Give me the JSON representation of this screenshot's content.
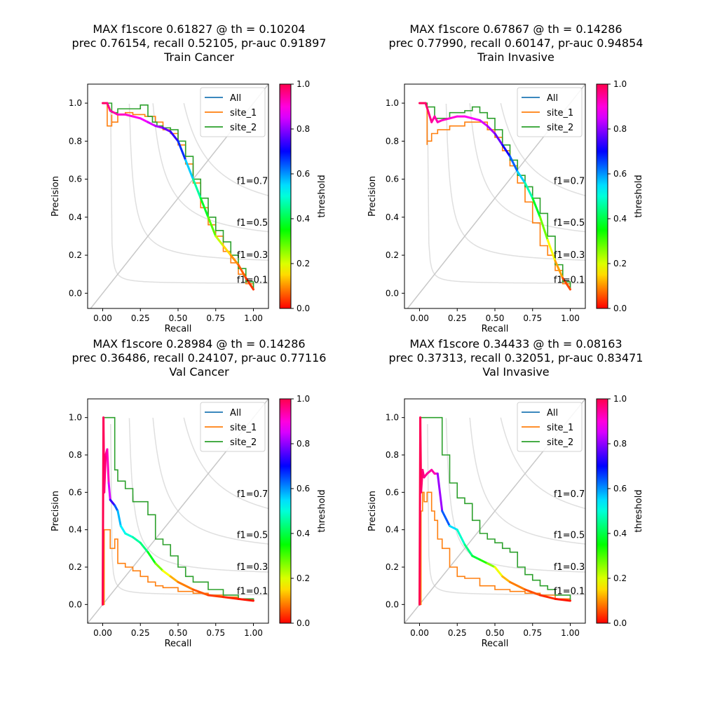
{
  "chart_data": [
    {
      "type": "line",
      "title_lines": [
        "MAX f1score  0.61827 @ th =  0.10204",
        "prec  0.76154, recall  0.52105, pr-auc  0.91897",
        "Train Cancer"
      ],
      "xlabel": "Recall",
      "ylabel": "Precision",
      "xlim": [
        -0.1,
        1.1
      ],
      "ylim": [
        -0.08,
        1.1
      ],
      "xticks": [
        "0.00",
        "0.25",
        "0.50",
        "0.75",
        "1.00"
      ],
      "yticks": [
        "0.0",
        "0.2",
        "0.4",
        "0.6",
        "0.8",
        "1.0"
      ],
      "legend": [
        "All",
        "site_1",
        "site_2"
      ],
      "legend_position": "top-right",
      "f1_labels": [
        {
          "text": "f1=0.7",
          "x": 0.89,
          "y": 0.59
        },
        {
          "text": "f1=0.5",
          "x": 0.89,
          "y": 0.37
        },
        {
          "text": "f1=0.3",
          "x": 0.89,
          "y": 0.2
        },
        {
          "text": "f1=0.1",
          "x": 0.89,
          "y": 0.07
        }
      ],
      "series": [
        {
          "name": "site_1",
          "color": "#ff7f0e",
          "x": [
            0,
            0.02,
            0.03,
            0.03,
            0.06,
            0.06,
            0.1,
            0.15,
            0.2,
            0.28,
            0.35,
            0.4,
            0.45,
            0.5,
            0.55,
            0.6,
            0.65,
            0.7,
            0.75,
            0.8,
            0.85,
            0.9,
            0.95,
            1.0
          ],
          "y": [
            1.0,
            1.0,
            0.92,
            0.88,
            0.94,
            0.9,
            0.94,
            0.95,
            0.94,
            0.93,
            0.9,
            0.86,
            0.84,
            0.78,
            0.68,
            0.58,
            0.45,
            0.36,
            0.3,
            0.22,
            0.16,
            0.1,
            0.05,
            0.02
          ]
        },
        {
          "name": "site_2",
          "color": "#2ca02c",
          "x": [
            0,
            0.05,
            0.06,
            0.08,
            0.1,
            0.1,
            0.25,
            0.3,
            0.33,
            0.36,
            0.4,
            0.45,
            0.5,
            0.55,
            0.6,
            0.65,
            0.7,
            0.75,
            0.8,
            0.85,
            0.9,
            0.95,
            1.0
          ],
          "y": [
            1.0,
            1.0,
            0.95,
            0.95,
            0.96,
            0.97,
            0.99,
            0.93,
            0.9,
            0.88,
            0.87,
            0.86,
            0.8,
            0.72,
            0.6,
            0.5,
            0.4,
            0.33,
            0.27,
            0.2,
            0.13,
            0.06,
            0.02
          ]
        },
        {
          "name": "All",
          "gradient": true,
          "color": "#1f77b4",
          "x": [
            0,
            0.03,
            0.05,
            0.1,
            0.15,
            0.2,
            0.25,
            0.3,
            0.35,
            0.4,
            0.45,
            0.5,
            0.55,
            0.6,
            0.65,
            0.7,
            0.75,
            0.8,
            0.85,
            0.9,
            0.95,
            1.0
          ],
          "y": [
            1.0,
            1.0,
            0.96,
            0.94,
            0.94,
            0.93,
            0.92,
            0.9,
            0.88,
            0.87,
            0.85,
            0.8,
            0.7,
            0.6,
            0.5,
            0.4,
            0.3,
            0.25,
            0.2,
            0.15,
            0.08,
            0.02
          ],
          "t": [
            1.0,
            0.97,
            0.95,
            0.93,
            0.91,
            0.9,
            0.88,
            0.86,
            0.84,
            0.8,
            0.75,
            0.72,
            0.62,
            0.5,
            0.42,
            0.33,
            0.25,
            0.18,
            0.12,
            0.08,
            0.05,
            0.02
          ]
        }
      ]
    },
    {
      "type": "line",
      "title_lines": [
        "MAX f1score  0.67867 @ th =  0.14286",
        "prec  0.77990, recall  0.60147, pr-auc  0.94854",
        "Train Invasive"
      ],
      "xlabel": "Recall",
      "ylabel": "Precision",
      "xlim": [
        -0.1,
        1.1
      ],
      "ylim": [
        -0.08,
        1.1
      ],
      "xticks": [
        "0.00",
        "0.25",
        "0.50",
        "0.75",
        "1.00"
      ],
      "yticks": [
        "0.0",
        "0.2",
        "0.4",
        "0.6",
        "0.8",
        "1.0"
      ],
      "legend": [
        "All",
        "site_1",
        "site_2"
      ],
      "legend_position": "top-right",
      "f1_labels": [
        {
          "text": "f1=0.7",
          "x": 0.89,
          "y": 0.59
        },
        {
          "text": "f1=0.5",
          "x": 0.89,
          "y": 0.37
        },
        {
          "text": "f1=0.3",
          "x": 0.89,
          "y": 0.2
        },
        {
          "text": "f1=0.1",
          "x": 0.89,
          "y": 0.07
        }
      ],
      "series": [
        {
          "name": "site_1",
          "color": "#ff7f0e",
          "x": [
            0,
            0.04,
            0.05,
            0.05,
            0.08,
            0.08,
            0.12,
            0.2,
            0.3,
            0.4,
            0.45,
            0.5,
            0.55,
            0.6,
            0.65,
            0.7,
            0.75,
            0.8,
            0.85,
            0.9,
            0.95,
            1.0
          ],
          "y": [
            1.0,
            1.0,
            0.78,
            0.8,
            0.8,
            0.84,
            0.86,
            0.88,
            0.9,
            0.9,
            0.86,
            0.82,
            0.75,
            0.67,
            0.58,
            0.48,
            0.37,
            0.25,
            0.2,
            0.12,
            0.05,
            0.02
          ]
        },
        {
          "name": "site_2",
          "color": "#2ca02c",
          "x": [
            0,
            0.03,
            0.05,
            0.1,
            0.1,
            0.2,
            0.3,
            0.35,
            0.38,
            0.4,
            0.45,
            0.5,
            0.55,
            0.6,
            0.65,
            0.7,
            0.75,
            0.8,
            0.85,
            0.9,
            0.95,
            1.0
          ],
          "y": [
            1.0,
            1.0,
            0.98,
            0.97,
            0.92,
            0.95,
            0.96,
            0.98,
            0.98,
            0.95,
            0.92,
            0.86,
            0.78,
            0.7,
            0.62,
            0.56,
            0.5,
            0.42,
            0.3,
            0.15,
            0.06,
            0.02
          ]
        },
        {
          "name": "All",
          "gradient": true,
          "color": "#1f77b4",
          "x": [
            0,
            0.04,
            0.06,
            0.08,
            0.1,
            0.12,
            0.15,
            0.2,
            0.25,
            0.3,
            0.35,
            0.4,
            0.45,
            0.5,
            0.55,
            0.6,
            0.65,
            0.7,
            0.75,
            0.8,
            0.85,
            0.9,
            0.95,
            1.0
          ],
          "y": [
            1.0,
            1.0,
            0.95,
            0.9,
            0.93,
            0.9,
            0.91,
            0.92,
            0.93,
            0.93,
            0.92,
            0.91,
            0.88,
            0.84,
            0.78,
            0.72,
            0.64,
            0.58,
            0.5,
            0.4,
            0.28,
            0.17,
            0.08,
            0.02
          ],
          "t": [
            1.0,
            0.98,
            0.97,
            0.95,
            0.94,
            0.93,
            0.92,
            0.91,
            0.9,
            0.89,
            0.88,
            0.86,
            0.84,
            0.8,
            0.75,
            0.67,
            0.6,
            0.52,
            0.42,
            0.33,
            0.22,
            0.14,
            0.08,
            0.02
          ]
        }
      ]
    },
    {
      "type": "line",
      "title_lines": [
        "MAX f1score  0.28984 @ th =  0.14286",
        "prec  0.36486, recall  0.24107, pr-auc  0.77116",
        "Val Cancer"
      ],
      "xlabel": "Recall",
      "ylabel": "Precision",
      "xlim": [
        -0.1,
        1.1
      ],
      "ylim": [
        -0.1,
        1.1
      ],
      "xticks": [
        "0.00",
        "0.25",
        "0.50",
        "0.75",
        "1.00"
      ],
      "yticks": [
        "0.0",
        "0.2",
        "0.4",
        "0.6",
        "0.8",
        "1.0"
      ],
      "legend": [
        "All",
        "site_1",
        "site_2"
      ],
      "legend_position": "top-right",
      "f1_labels": [
        {
          "text": "f1=0.7",
          "x": 0.89,
          "y": 0.59
        },
        {
          "text": "f1=0.5",
          "x": 0.89,
          "y": 0.37
        },
        {
          "text": "f1=0.3",
          "x": 0.89,
          "y": 0.2
        },
        {
          "text": "f1=0.1",
          "x": 0.89,
          "y": 0.07
        }
      ],
      "series": [
        {
          "name": "site_1",
          "color": "#ff7f0e",
          "x": [
            0,
            0.01,
            0.01,
            0.03,
            0.05,
            0.08,
            0.1,
            0.15,
            0.2,
            0.25,
            0.3,
            0.35,
            0.4,
            0.5,
            0.6,
            0.7,
            0.8,
            0.9,
            1.0
          ],
          "y": [
            0.0,
            0.25,
            0.4,
            0.4,
            0.3,
            0.35,
            0.22,
            0.2,
            0.18,
            0.15,
            0.12,
            0.1,
            0.09,
            0.07,
            0.06,
            0.05,
            0.04,
            0.03,
            0.02
          ]
        },
        {
          "name": "site_2",
          "color": "#2ca02c",
          "x": [
            0,
            0.02,
            0.08,
            0.08,
            0.1,
            0.15,
            0.2,
            0.25,
            0.3,
            0.35,
            0.4,
            0.45,
            0.5,
            0.55,
            0.6,
            0.7,
            0.8,
            0.9,
            1.0
          ],
          "y": [
            1.0,
            1.0,
            1.0,
            0.72,
            0.66,
            0.62,
            0.55,
            0.55,
            0.48,
            0.35,
            0.32,
            0.26,
            0.2,
            0.15,
            0.12,
            0.08,
            0.05,
            0.03,
            0.02
          ]
        },
        {
          "name": "All",
          "gradient": true,
          "color": "#1f77b4",
          "x": [
            0,
            0.005,
            0.01,
            0.02,
            0.03,
            0.04,
            0.05,
            0.08,
            0.1,
            0.12,
            0.15,
            0.2,
            0.25,
            0.3,
            0.35,
            0.4,
            0.45,
            0.5,
            0.6,
            0.7,
            0.8,
            0.9,
            1.0
          ],
          "y": [
            0.0,
            1.0,
            0.6,
            0.8,
            0.83,
            0.65,
            0.56,
            0.53,
            0.5,
            0.42,
            0.38,
            0.36,
            0.33,
            0.28,
            0.22,
            0.18,
            0.15,
            0.12,
            0.08,
            0.05,
            0.04,
            0.03,
            0.02
          ],
          "t": [
            1.0,
            1.0,
            0.98,
            0.96,
            0.95,
            0.9,
            0.8,
            0.68,
            0.6,
            0.55,
            0.52,
            0.48,
            0.45,
            0.42,
            0.32,
            0.22,
            0.14,
            0.1,
            0.07,
            0.05,
            0.03,
            0.02,
            0.01
          ]
        }
      ]
    },
    {
      "type": "line",
      "title_lines": [
        "MAX f1score  0.34433 @ th =  0.08163",
        "prec  0.37313, recall  0.32051, pr-auc  0.83471",
        "Val Invasive"
      ],
      "xlabel": "Recall",
      "ylabel": "Precision",
      "xlim": [
        -0.1,
        1.1
      ],
      "ylim": [
        -0.1,
        1.1
      ],
      "xticks": [
        "0.00",
        "0.25",
        "0.50",
        "0.75",
        "1.00"
      ],
      "yticks": [
        "0.0",
        "0.2",
        "0.4",
        "0.6",
        "0.8",
        "1.0"
      ],
      "legend": [
        "All",
        "site_1",
        "site_2"
      ],
      "legend_position": "top-right",
      "f1_labels": [
        {
          "text": "f1=0.7",
          "x": 0.89,
          "y": 0.59
        },
        {
          "text": "f1=0.5",
          "x": 0.89,
          "y": 0.37
        },
        {
          "text": "f1=0.3",
          "x": 0.89,
          "y": 0.2
        },
        {
          "text": "f1=0.1",
          "x": 0.89,
          "y": 0.07
        }
      ],
      "series": [
        {
          "name": "site_1",
          "color": "#ff7f0e",
          "x": [
            0,
            0.01,
            0.01,
            0.02,
            0.03,
            0.05,
            0.08,
            0.1,
            0.12,
            0.15,
            0.2,
            0.25,
            0.3,
            0.4,
            0.5,
            0.6,
            0.7,
            0.8,
            0.9,
            1.0
          ],
          "y": [
            0.0,
            0.3,
            0.5,
            0.6,
            0.55,
            0.6,
            0.5,
            0.45,
            0.35,
            0.3,
            0.2,
            0.15,
            0.14,
            0.1,
            0.08,
            0.07,
            0.06,
            0.05,
            0.03,
            0.02
          ]
        },
        {
          "name": "site_2",
          "color": "#2ca02c",
          "x": [
            0,
            0.02,
            0.15,
            0.15,
            0.2,
            0.25,
            0.3,
            0.35,
            0.4,
            0.45,
            0.5,
            0.55,
            0.6,
            0.65,
            0.7,
            0.75,
            0.8,
            0.85,
            0.9,
            1.0
          ],
          "y": [
            1.0,
            1.0,
            1.0,
            0.8,
            0.65,
            0.57,
            0.54,
            0.45,
            0.38,
            0.35,
            0.33,
            0.3,
            0.28,
            0.2,
            0.16,
            0.13,
            0.1,
            0.08,
            0.05,
            0.02
          ]
        },
        {
          "name": "All",
          "gradient": true,
          "color": "#1f77b4",
          "x": [
            0,
            0.005,
            0.01,
            0.02,
            0.03,
            0.05,
            0.08,
            0.1,
            0.12,
            0.15,
            0.2,
            0.25,
            0.3,
            0.35,
            0.4,
            0.45,
            0.5,
            0.55,
            0.6,
            0.7,
            0.8,
            0.9,
            1.0
          ],
          "y": [
            0.0,
            1.0,
            0.6,
            0.72,
            0.68,
            0.7,
            0.72,
            0.7,
            0.7,
            0.5,
            0.42,
            0.4,
            0.32,
            0.26,
            0.24,
            0.22,
            0.2,
            0.15,
            0.12,
            0.08,
            0.05,
            0.03,
            0.02
          ],
          "t": [
            1.0,
            1.0,
            0.99,
            0.97,
            0.96,
            0.95,
            0.94,
            0.93,
            0.92,
            0.7,
            0.58,
            0.52,
            0.46,
            0.42,
            0.36,
            0.3,
            0.22,
            0.15,
            0.1,
            0.07,
            0.04,
            0.02,
            0.01
          ]
        }
      ]
    }
  ]
}
